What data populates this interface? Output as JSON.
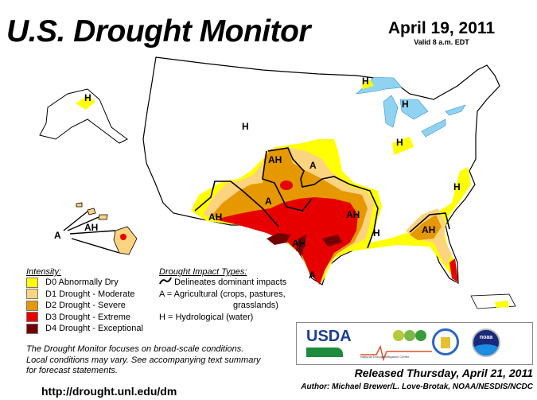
{
  "header": {
    "title": "U.S. Drought Monitor",
    "date": "April 19, 2011",
    "valid": "Valid 8 a.m. EDT"
  },
  "legend": {
    "intensity_heading": "Intensity:",
    "items": [
      {
        "label": "D0 Abnormally Dry",
        "color": "#ffff00"
      },
      {
        "label": "D1 Drought - Moderate",
        "color": "#fcd37f"
      },
      {
        "label": "D2 Drought - Severe",
        "color": "#e69800"
      },
      {
        "label": "D3 Drought - Extreme",
        "color": "#e60000"
      },
      {
        "label": "D4 Drought - Exceptional",
        "color": "#730000"
      }
    ],
    "impact_heading": "Drought Impact Types:",
    "impact_line": "Delineates dominant impacts",
    "impact_a": "A = Agricultural (crops, pastures,",
    "impact_a2": "grasslands)",
    "impact_h": "H = Hydrological (water)"
  },
  "map_labels": [
    "AH",
    "A",
    "A",
    "AH",
    "AH",
    "AH",
    "H",
    "AH",
    "H",
    "H",
    "H",
    "H",
    "H",
    "A",
    "H",
    "AH",
    "A"
  ],
  "note": [
    "The Drought Monitor focuses on broad-scale conditions.",
    "Local conditions may vary. See accompanying text summary",
    "for forecast statements."
  ],
  "url": "http://drought.unl.edu/dm",
  "released": "Released Thursday, April 21, 2011",
  "author": "Author: Michael Brewer/L. Love-Brotak, NOAA/NESDIS/NCDC",
  "logos": {
    "usda": "USDA",
    "ndmc": "National  Drought Mitigation Center",
    "noaa": "noaa"
  }
}
